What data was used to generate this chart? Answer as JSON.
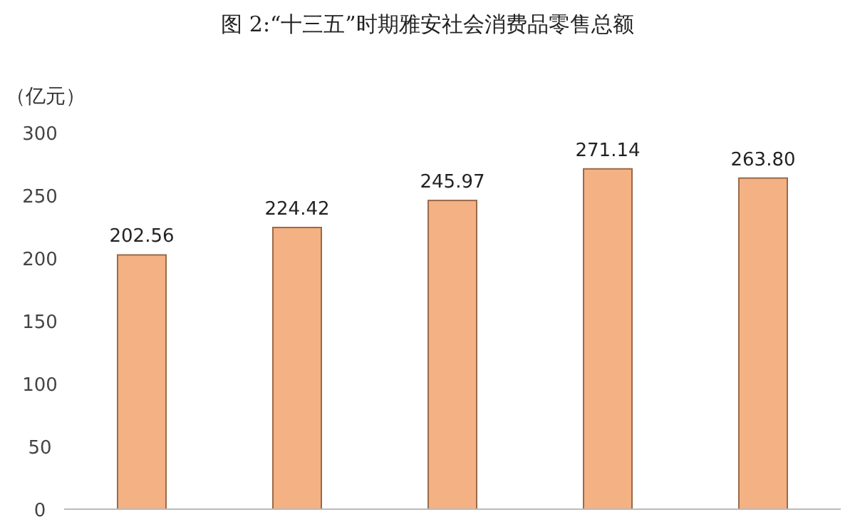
{
  "chart_data": {
    "type": "bar",
    "title": "图 2:“十三五”时期雅安社会消费品零售总额",
    "ylabel": "（亿元）",
    "categories": [
      null,
      null,
      null,
      null,
      null
    ],
    "values": [
      202.56,
      224.42,
      245.97,
      271.14,
      263.8
    ],
    "value_labels": [
      "202.56",
      "224.42",
      "245.97",
      "271.14",
      "263.80"
    ],
    "color": "#f4b183",
    "ylim": [
      0,
      300
    ],
    "yticks": [
      0,
      50,
      100,
      150,
      200,
      250,
      300
    ]
  }
}
